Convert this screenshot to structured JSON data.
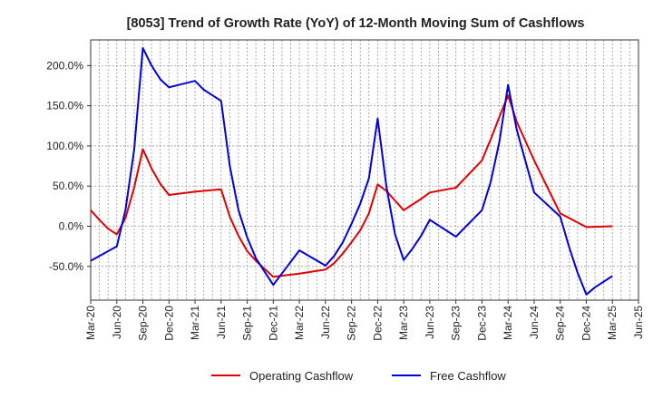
{
  "chart_data": {
    "type": "line",
    "title": "[8053]  Trend of Growth Rate (YoY) of 12-Month Moving Sum of Cashflows",
    "xlabel": "",
    "ylabel": "",
    "x_ticks": [
      "Mar-20",
      "Jun-20",
      "Sep-20",
      "Dec-20",
      "Mar-21",
      "Jun-21",
      "Sep-21",
      "Dec-21",
      "Mar-22",
      "Jun-22",
      "Sep-22",
      "Dec-22",
      "Mar-23",
      "Jun-23",
      "Sep-23",
      "Dec-23",
      "Mar-24",
      "Jun-24",
      "Sep-24",
      "Dec-24",
      "Mar-25",
      "Jun-25"
    ],
    "y_ticks": [
      {
        "value": 200,
        "label": "200.0%"
      },
      {
        "value": 150,
        "label": "150.0%"
      },
      {
        "value": 100,
        "label": "100.0%"
      },
      {
        "value": 50,
        "label": "50.0%"
      },
      {
        "value": 0,
        "label": "0.0%"
      },
      {
        "value": -50,
        "label": "-50.0%"
      }
    ],
    "ylim": [
      -92,
      232
    ],
    "x_range_months": [
      0,
      63
    ],
    "grid": true,
    "legend_position": "bottom-center",
    "series": [
      {
        "name": "Operating Cashflow",
        "color": "#e00000",
        "points": [
          {
            "m": 0,
            "y": 20
          },
          {
            "m": 1,
            "y": 8
          },
          {
            "m": 2,
            "y": -3
          },
          {
            "m": 3,
            "y": -10
          },
          {
            "m": 4,
            "y": 10
          },
          {
            "m": 5,
            "y": 48
          },
          {
            "m": 6,
            "y": 96
          },
          {
            "m": 7,
            "y": 72
          },
          {
            "m": 8,
            "y": 53
          },
          {
            "m": 9,
            "y": 39
          },
          {
            "m": 12,
            "y": 43
          },
          {
            "m": 15,
            "y": 46
          },
          {
            "m": 16,
            "y": 12
          },
          {
            "m": 17,
            "y": -12
          },
          {
            "m": 18,
            "y": -31
          },
          {
            "m": 19,
            "y": -43
          },
          {
            "m": 21,
            "y": -63
          },
          {
            "m": 24,
            "y": -59
          },
          {
            "m": 27,
            "y": -54
          },
          {
            "m": 28,
            "y": -46
          },
          {
            "m": 29,
            "y": -34
          },
          {
            "m": 30,
            "y": -20
          },
          {
            "m": 31,
            "y": -5
          },
          {
            "m": 32,
            "y": 16
          },
          {
            "m": 33,
            "y": 52
          },
          {
            "m": 34,
            "y": 44
          },
          {
            "m": 36,
            "y": 20
          },
          {
            "m": 38,
            "y": 34
          },
          {
            "m": 39,
            "y": 42
          },
          {
            "m": 42,
            "y": 48
          },
          {
            "m": 45,
            "y": 82
          },
          {
            "m": 46,
            "y": 108
          },
          {
            "m": 47,
            "y": 136
          },
          {
            "m": 48,
            "y": 163
          },
          {
            "m": 49,
            "y": 130
          },
          {
            "m": 51,
            "y": 82
          },
          {
            "m": 54,
            "y": 16
          },
          {
            "m": 57,
            "y": -1
          },
          {
            "m": 60,
            "y": 0
          }
        ]
      },
      {
        "name": "Free Cashflow",
        "color": "#0000dd",
        "points": [
          {
            "m": 0,
            "y": -43
          },
          {
            "m": 3,
            "y": -25
          },
          {
            "m": 4,
            "y": 20
          },
          {
            "m": 5,
            "y": 95
          },
          {
            "m": 6,
            "y": 222
          },
          {
            "m": 7,
            "y": 200
          },
          {
            "m": 8,
            "y": 183
          },
          {
            "m": 9,
            "y": 173
          },
          {
            "m": 12,
            "y": 181
          },
          {
            "m": 13,
            "y": 170
          },
          {
            "m": 15,
            "y": 156
          },
          {
            "m": 16,
            "y": 75
          },
          {
            "m": 17,
            "y": 20
          },
          {
            "m": 18,
            "y": -14
          },
          {
            "m": 19,
            "y": -40
          },
          {
            "m": 21,
            "y": -73
          },
          {
            "m": 24,
            "y": -30
          },
          {
            "m": 27,
            "y": -49
          },
          {
            "m": 28,
            "y": -37
          },
          {
            "m": 29,
            "y": -20
          },
          {
            "m": 30,
            "y": 3
          },
          {
            "m": 31,
            "y": 28
          },
          {
            "m": 32,
            "y": 60
          },
          {
            "m": 33,
            "y": 134
          },
          {
            "m": 34,
            "y": 50
          },
          {
            "m": 35,
            "y": -10
          },
          {
            "m": 36,
            "y": -42
          },
          {
            "m": 37,
            "y": -28
          },
          {
            "m": 38,
            "y": -12
          },
          {
            "m": 39,
            "y": 8
          },
          {
            "m": 42,
            "y": -13
          },
          {
            "m": 45,
            "y": 20
          },
          {
            "m": 46,
            "y": 55
          },
          {
            "m": 47,
            "y": 105
          },
          {
            "m": 48,
            "y": 176
          },
          {
            "m": 49,
            "y": 120
          },
          {
            "m": 51,
            "y": 42
          },
          {
            "m": 54,
            "y": 12
          },
          {
            "m": 55,
            "y": -25
          },
          {
            "m": 56,
            "y": -58
          },
          {
            "m": 57,
            "y": -85
          },
          {
            "m": 58,
            "y": -76
          },
          {
            "m": 60,
            "y": -62
          }
        ]
      }
    ]
  }
}
